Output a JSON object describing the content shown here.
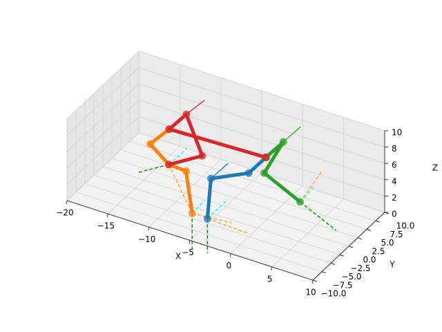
{
  "chart_data": {
    "type": "line3d",
    "xlabel": "X",
    "ylabel": "Y",
    "zlabel": "Z",
    "xlim": [
      -20,
      10
    ],
    "ylim": [
      -10,
      10
    ],
    "zlim": [
      0,
      10
    ],
    "xticks": [
      {
        "value": -20,
        "label": "−20"
      },
      {
        "value": -15,
        "label": "−15"
      },
      {
        "value": -10,
        "label": "−10"
      },
      {
        "value": -5,
        "label": "−5"
      },
      0,
      5,
      10
    ],
    "yticks": [
      {
        "value": -10,
        "label": "−10.0"
      },
      {
        "value": -7.5,
        "label": "−7.5"
      },
      {
        "value": -5,
        "label": "−5.0"
      },
      {
        "value": -2.5,
        "label": "−2.5"
      },
      {
        "value": 0,
        "label": "0.0"
      },
      2.5,
      {
        "value": 5,
        "label": "5.0"
      },
      7.5,
      {
        "value": 10,
        "label": "10.0"
      }
    ],
    "zticks": [
      0,
      2,
      4,
      6,
      8,
      10
    ],
    "grid": true,
    "series": [
      {
        "color": "#1f77b4",
        "linestyle": "solid",
        "linewidth": 5,
        "marker": "o",
        "x": [
          0.2,
          -2.2,
          -5.9,
          -5.5
        ],
        "y": [
          -0.7,
          0.0,
          -2.1,
          -4.0
        ],
        "z": [
          8,
          5,
          4,
          0
        ]
      },
      {
        "color": "#ff7f0e",
        "linestyle": "solid",
        "linewidth": 5,
        "marker": "o",
        "x": [
          -11.3,
          -12.4,
          -9.5,
          -8.1,
          -7.4
        ],
        "y": [
          -1.4,
          -4.2,
          -5.6,
          -4.0,
          -3.9
        ],
        "z": [
          8,
          7,
          6,
          5,
          0
        ]
      },
      {
        "color": "#2ca02c",
        "linestyle": "solid",
        "linewidth": 5,
        "marker": "o",
        "x": [
          0.2,
          0.3,
          -0.8,
          2.1
        ],
        "y": [
          -0.7,
          3.9,
          1.1,
          4.5
        ],
        "z": [
          8,
          8,
          5,
          1
        ]
      },
      {
        "color": "#d62728",
        "linestyle": "solid",
        "linewidth": 5,
        "marker": "o",
        "x": [
          -9.5,
          -7.3,
          -9.6,
          -11.3,
          0.2
        ],
        "y": [
          -5.6,
          -1.3,
          -0.5,
          -1.4,
          -0.7
        ],
        "z": [
          6,
          6,
          10,
          8,
          8
        ]
      },
      {
        "color": "#d62728",
        "linestyle": "solid",
        "linewidth": 1.3,
        "x": [
          -9.6,
          -9.3
        ],
        "y": [
          -0.5,
          3.9
        ],
        "z": [
          10,
          10
        ]
      },
      {
        "color": "#2ca02c",
        "linestyle": "solid",
        "linewidth": 1.3,
        "x": [
          0.3,
          0.4
        ],
        "y": [
          3.9,
          8.5
        ],
        "z": [
          8,
          8
        ]
      },
      {
        "color": "#1f77b4",
        "linestyle": "solid",
        "linewidth": 1.3,
        "x": [
          -5.9,
          -5.8
        ],
        "y": [
          -2.1,
          2.5
        ],
        "z": [
          4,
          4
        ]
      },
      {
        "color": "green",
        "linestyle": "dashed",
        "linewidth": 1.3,
        "x": [
          2.1,
          8.1
        ],
        "y": [
          4.5,
          0.8
        ],
        "z": [
          1,
          1
        ]
      },
      {
        "color": "orange",
        "linestyle": "dashed",
        "linewidth": 1.3,
        "x": [
          2.1,
          2.7
        ],
        "y": [
          4.5,
          9.1
        ],
        "z": [
          1,
          3
        ]
      },
      {
        "color": "cyan",
        "linestyle": "dashed",
        "linewidth": 1.3,
        "x": [
          2.1,
          2.7
        ],
        "y": [
          4.5,
          7.0
        ],
        "z": [
          1,
          2
        ]
      },
      {
        "color": "green",
        "linestyle": "dashed",
        "linewidth": 1.3,
        "x": [
          -5.5,
          -5.5
        ],
        "y": [
          -4.0,
          -4.0
        ],
        "z": [
          0,
          -4.2
        ]
      },
      {
        "color": "orange",
        "linestyle": "dashed",
        "linewidth": 1.3,
        "x": [
          -5.5,
          -0.5
        ],
        "y": [
          -4.0,
          -4.3
        ],
        "z": [
          0,
          0
        ]
      },
      {
        "color": "cyan",
        "linestyle": "dashed",
        "linewidth": 1.3,
        "x": [
          -5.5,
          -5.5
        ],
        "y": [
          -4.0,
          1.1
        ],
        "z": [
          0,
          0
        ]
      },
      {
        "color": "green",
        "linestyle": "dashed",
        "linewidth": 1.3,
        "x": [
          -7.4,
          -7.4
        ],
        "y": [
          -3.9,
          -3.9
        ],
        "z": [
          0,
          -4.8
        ]
      },
      {
        "color": "orange",
        "linestyle": "dashed",
        "linewidth": 1.3,
        "x": [
          -7.4,
          -2.9
        ],
        "y": [
          -3.9,
          -3.2
        ],
        "z": [
          0,
          0
        ]
      },
      {
        "color": "cyan",
        "linestyle": "dashed",
        "linewidth": 1.3,
        "x": [
          -7.4,
          -7.5
        ],
        "y": [
          -3.9,
          -0.2
        ],
        "z": [
          0,
          0
        ]
      },
      {
        "color": "green",
        "linestyle": "dashed",
        "linewidth": 1.3,
        "x": [
          -9.5,
          -11.6
        ],
        "y": [
          -5.6,
          -9.7
        ],
        "z": [
          6,
          6
        ]
      },
      {
        "color": "cyan",
        "linestyle": "dashed",
        "linewidth": 1.3,
        "x": [
          -9.5,
          -9.4
        ],
        "y": [
          -5.6,
          -0.9
        ],
        "z": [
          6,
          6
        ]
      },
      {
        "color": "orange",
        "linestyle": "dashed",
        "linewidth": 1.3,
        "x": [
          -9.5,
          -7.4
        ],
        "y": [
          -5.6,
          -3.9
        ],
        "z": [
          6,
          0
        ]
      }
    ]
  }
}
